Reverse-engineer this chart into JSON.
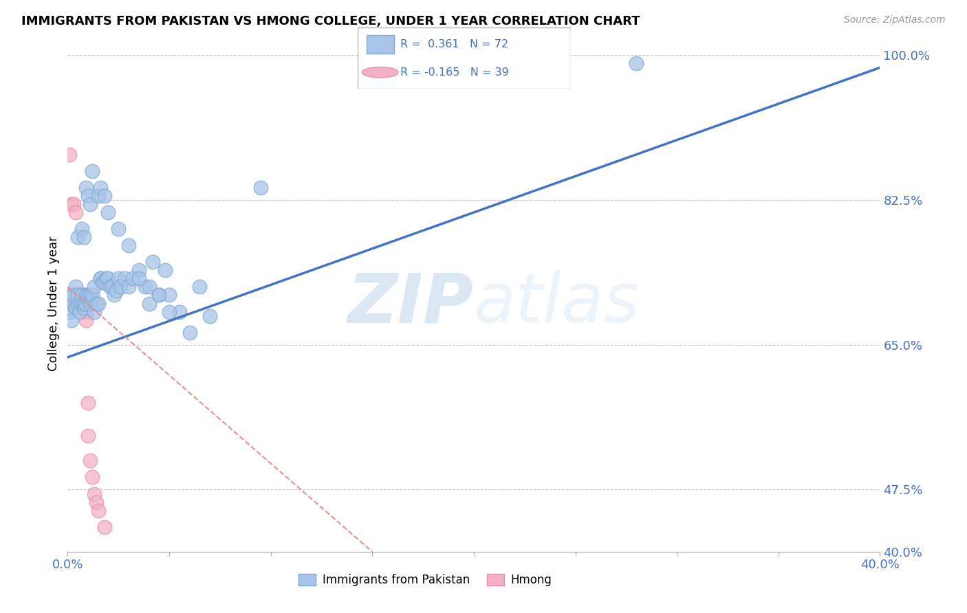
{
  "title": "IMMIGRANTS FROM PAKISTAN VS HMONG COLLEGE, UNDER 1 YEAR CORRELATION CHART",
  "source": "Source: ZipAtlas.com",
  "ylabel": "College, Under 1 year",
  "xmin": 0.0,
  "xmax": 0.4,
  "ymin": 0.4,
  "ymax": 1.0,
  "pakistan_R": 0.361,
  "pakistan_N": 72,
  "hmong_R": -0.165,
  "hmong_N": 39,
  "pakistan_color": "#A8C4E8",
  "pakistan_edge_color": "#7AAAD4",
  "hmong_color": "#F4B0C4",
  "hmong_edge_color": "#E890A8",
  "pakistan_line_color": "#4472C4",
  "hmong_line_color": "#E89090",
  "legend_pakistan": "Immigrants from Pakistan",
  "legend_hmong": "Hmong",
  "watermark_zip": "ZIP",
  "watermark_atlas": "atlas",
  "right_ytick_labels": [
    "100.0%",
    "82.5%",
    "65.0%",
    "47.5%",
    "40.0%"
  ],
  "right_ytick_values": [
    1.0,
    0.825,
    0.65,
    0.475,
    0.4
  ],
  "pakistan_x": [
    0.001,
    0.002,
    0.002,
    0.003,
    0.003,
    0.004,
    0.004,
    0.005,
    0.005,
    0.006,
    0.006,
    0.007,
    0.007,
    0.008,
    0.008,
    0.009,
    0.009,
    0.01,
    0.01,
    0.011,
    0.011,
    0.012,
    0.012,
    0.013,
    0.013,
    0.014,
    0.015,
    0.016,
    0.016,
    0.017,
    0.018,
    0.019,
    0.02,
    0.021,
    0.022,
    0.023,
    0.024,
    0.025,
    0.026,
    0.028,
    0.03,
    0.032,
    0.035,
    0.038,
    0.04,
    0.042,
    0.045,
    0.048,
    0.05,
    0.055,
    0.005,
    0.007,
    0.008,
    0.009,
    0.01,
    0.011,
    0.012,
    0.015,
    0.016,
    0.018,
    0.02,
    0.025,
    0.03,
    0.035,
    0.04,
    0.045,
    0.05,
    0.06,
    0.065,
    0.07,
    0.28,
    0.095
  ],
  "pakistan_y": [
    0.69,
    0.68,
    0.71,
    0.7,
    0.71,
    0.72,
    0.695,
    0.7,
    0.71,
    0.7,
    0.69,
    0.7,
    0.71,
    0.695,
    0.7,
    0.7,
    0.71,
    0.705,
    0.71,
    0.7,
    0.71,
    0.705,
    0.71,
    0.69,
    0.72,
    0.7,
    0.7,
    0.73,
    0.73,
    0.725,
    0.725,
    0.73,
    0.73,
    0.72,
    0.72,
    0.71,
    0.715,
    0.73,
    0.72,
    0.73,
    0.72,
    0.73,
    0.74,
    0.72,
    0.72,
    0.75,
    0.71,
    0.74,
    0.71,
    0.69,
    0.78,
    0.79,
    0.78,
    0.84,
    0.83,
    0.82,
    0.86,
    0.83,
    0.84,
    0.83,
    0.81,
    0.79,
    0.77,
    0.73,
    0.7,
    0.71,
    0.69,
    0.665,
    0.72,
    0.685,
    0.99,
    0.84
  ],
  "hmong_x": [
    0.001,
    0.001,
    0.001,
    0.002,
    0.002,
    0.002,
    0.002,
    0.002,
    0.003,
    0.003,
    0.003,
    0.003,
    0.004,
    0.004,
    0.004,
    0.004,
    0.005,
    0.005,
    0.005,
    0.005,
    0.006,
    0.006,
    0.006,
    0.007,
    0.007,
    0.007,
    0.007,
    0.008,
    0.008,
    0.009,
    0.009,
    0.01,
    0.01,
    0.011,
    0.012,
    0.013,
    0.014,
    0.015,
    0.018
  ],
  "hmong_y": [
    0.7,
    0.7,
    0.88,
    0.7,
    0.7,
    0.7,
    0.71,
    0.82,
    0.7,
    0.7,
    0.82,
    0.7,
    0.7,
    0.81,
    0.7,
    0.7,
    0.7,
    0.71,
    0.7,
    0.7,
    0.7,
    0.7,
    0.71,
    0.7,
    0.7,
    0.7,
    0.7,
    0.7,
    0.71,
    0.69,
    0.68,
    0.58,
    0.54,
    0.51,
    0.49,
    0.47,
    0.46,
    0.45,
    0.43
  ],
  "pak_line_x0": 0.0,
  "pak_line_y0": 0.635,
  "pak_line_x1": 0.4,
  "pak_line_y1": 0.985,
  "hmong_line_x0": 0.0,
  "hmong_line_y0": 0.72,
  "hmong_line_x1": 0.15,
  "hmong_line_y1": 0.4
}
